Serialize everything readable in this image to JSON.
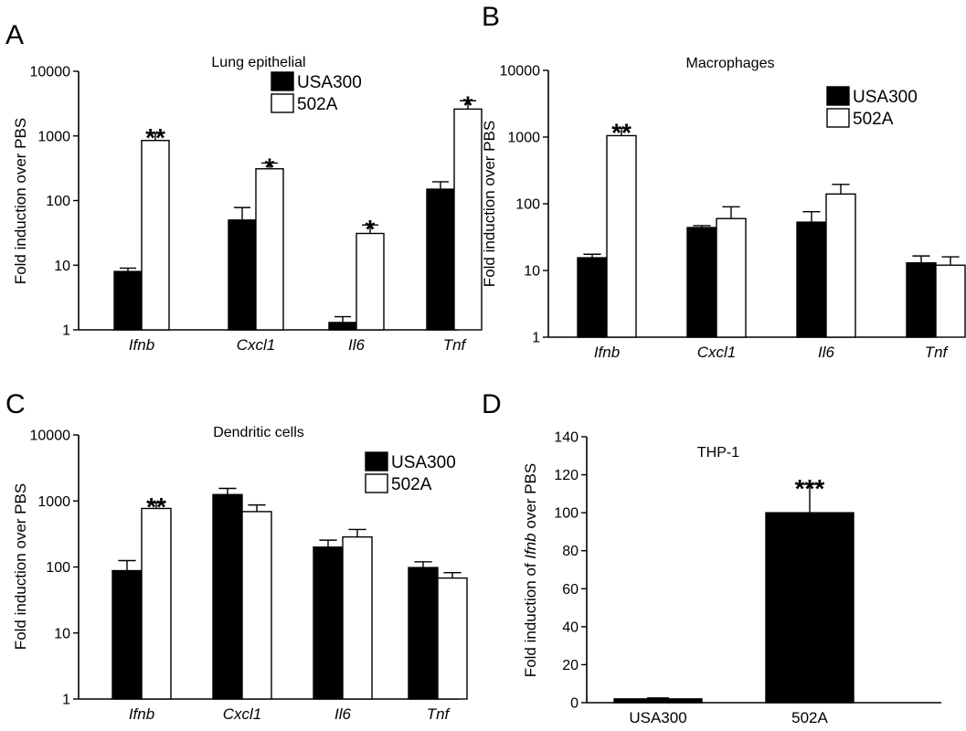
{
  "panels": [
    {
      "id": "A",
      "chart_data": {
        "type": "bar",
        "title": "Lung epithelial",
        "ylabel": "Fold induction over PBS",
        "xlabel": "",
        "yscale": "log",
        "ylim": [
          1,
          10000
        ],
        "yticks": [
          "1",
          "10",
          "100",
          "1000",
          "10000"
        ],
        "categories": [
          "Ifnb",
          "Cxcl1",
          "Il6",
          "Tnf"
        ],
        "categories_italic": true,
        "series": [
          {
            "name": "USA300",
            "color": "#000000",
            "values": [
              8,
              50,
              1.3,
              150
            ],
            "errors": [
              9,
              78,
              1.6,
              195
            ]
          },
          {
            "name": "502A",
            "color": "#ffffff",
            "values": [
              850,
              310,
              31,
              2600
            ],
            "errors": [
              1100,
              380,
              42,
              3500
            ]
          }
        ],
        "significance": [
          "**",
          "*",
          "*",
          "*"
        ],
        "legend_position": "top-right",
        "grid": false
      }
    },
    {
      "id": "B",
      "chart_data": {
        "type": "bar",
        "title": "Macrophages",
        "ylabel": "Fold induction over PBS",
        "xlabel": "",
        "yscale": "log",
        "ylim": [
          1,
          10000
        ],
        "yticks": [
          "1",
          "10",
          "100",
          "1000",
          "10000"
        ],
        "categories": [
          "Ifnb",
          "Cxcl1",
          "Il6",
          "Tnf"
        ],
        "categories_italic": true,
        "series": [
          {
            "name": "USA300",
            "color": "#000000",
            "values": [
              15.5,
              44,
              53,
              13
            ],
            "errors": [
              17.5,
              47,
              76,
              16.5
            ]
          },
          {
            "name": "502A",
            "color": "#ffffff",
            "values": [
              1050,
              60,
              140,
              12
            ],
            "errors": [
              1350,
              90,
              195,
              16
            ]
          }
        ],
        "significance": [
          "**",
          "",
          "",
          ""
        ],
        "legend_position": "top-right",
        "grid": false
      }
    },
    {
      "id": "C",
      "chart_data": {
        "type": "bar",
        "title": "Dendritic cells",
        "ylabel": "Fold induction over PBS",
        "xlabel": "",
        "yscale": "log",
        "ylim": [
          1,
          10000
        ],
        "yticks": [
          "1",
          "10",
          "100",
          "1000",
          "10000"
        ],
        "categories": [
          "Ifnb",
          "Cxcl1",
          "Il6",
          "Tnf"
        ],
        "categories_italic": true,
        "series": [
          {
            "name": "USA300",
            "color": "#000000",
            "values": [
              88,
              1250,
              200,
              98
            ],
            "errors": [
              125,
              1550,
              255,
              120
            ]
          },
          {
            "name": "502A",
            "color": "#ffffff",
            "values": [
              770,
              690,
              285,
              68
            ],
            "errors": [
              940,
              870,
              370,
              82
            ]
          }
        ],
        "significance": [
          "**",
          "",
          "",
          ""
        ],
        "legend_position": "top-right",
        "grid": false
      }
    },
    {
      "id": "D",
      "chart_data": {
        "type": "bar",
        "title": "THP-1",
        "ylabel_pre": "Fold induction of ",
        "ylabel_it": "Ifnb",
        "ylabel_post": " over PBS",
        "xlabel": "",
        "yscale": "linear",
        "ylim": [
          0,
          140
        ],
        "yticks": [
          "0",
          "20",
          "40",
          "60",
          "80",
          "100",
          "120",
          "140"
        ],
        "categories": [
          "USA300",
          "502A"
        ],
        "categories_italic": false,
        "series": [
          {
            "name": "",
            "color": "#000000",
            "values": [
              2,
              100
            ],
            "errors": [
              2.5,
              115
            ]
          }
        ],
        "significance": [
          "",
          "***"
        ],
        "grid": false
      }
    }
  ]
}
